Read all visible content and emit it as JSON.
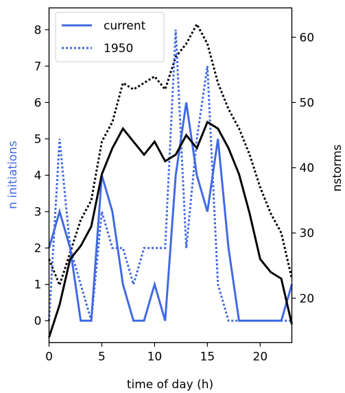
{
  "chart_data": {
    "type": "line",
    "xlabel": "time of day (h)",
    "ylabel_left": "n initiations",
    "ylabel_right": "nstorms",
    "xlim": [
      0,
      23
    ],
    "ylim_left": [
      -0.6,
      8.6
    ],
    "ylim_right": [
      13.2,
      64.5
    ],
    "xticks": [
      0,
      5,
      10,
      15,
      20
    ],
    "yticks_left": [
      0,
      1,
      2,
      3,
      4,
      5,
      6,
      7,
      8
    ],
    "yticks_right": [
      20,
      30,
      40,
      50,
      60
    ],
    "grid": false,
    "legend_position": "upper-left",
    "x": [
      0,
      1,
      2,
      3,
      4,
      5,
      6,
      7,
      8,
      9,
      10,
      11,
      12,
      13,
      14,
      15,
      16,
      17,
      18,
      19,
      20,
      21,
      22,
      23
    ],
    "series": [
      {
        "name": "current",
        "axis": "left",
        "style": "solid",
        "color": "#4169e1",
        "values": [
          2,
          3,
          2,
          0,
          0,
          4,
          3,
          1,
          0,
          0,
          1,
          0,
          4,
          6,
          4,
          3,
          5,
          2,
          0,
          0,
          0,
          0,
          0,
          1
        ]
      },
      {
        "name": "1950",
        "axis": "left",
        "style": "dotted",
        "color": "#4169e1",
        "values": [
          0,
          5,
          2,
          1,
          0,
          3,
          2,
          2,
          1,
          2,
          2,
          2,
          8,
          2,
          5,
          7,
          1,
          0,
          0,
          0,
          0,
          0,
          0,
          0
        ]
      },
      {
        "name": "",
        "axis": "right",
        "style": "solid",
        "color": "#000000",
        "values": [
          14,
          19,
          26,
          28,
          31,
          39,
          43,
          46,
          44,
          42,
          44,
          41,
          42,
          45,
          43,
          47,
          46,
          43,
          39,
          33,
          26,
          24,
          23,
          16
        ]
      },
      {
        "name": "",
        "axis": "right",
        "style": "dotted",
        "color": "#000000",
        "values": [
          26,
          22,
          27,
          32,
          35,
          44,
          47,
          53,
          52,
          53,
          54,
          52,
          57,
          59,
          62,
          59,
          53,
          49,
          46,
          42,
          37,
          33,
          30,
          23
        ]
      }
    ]
  }
}
